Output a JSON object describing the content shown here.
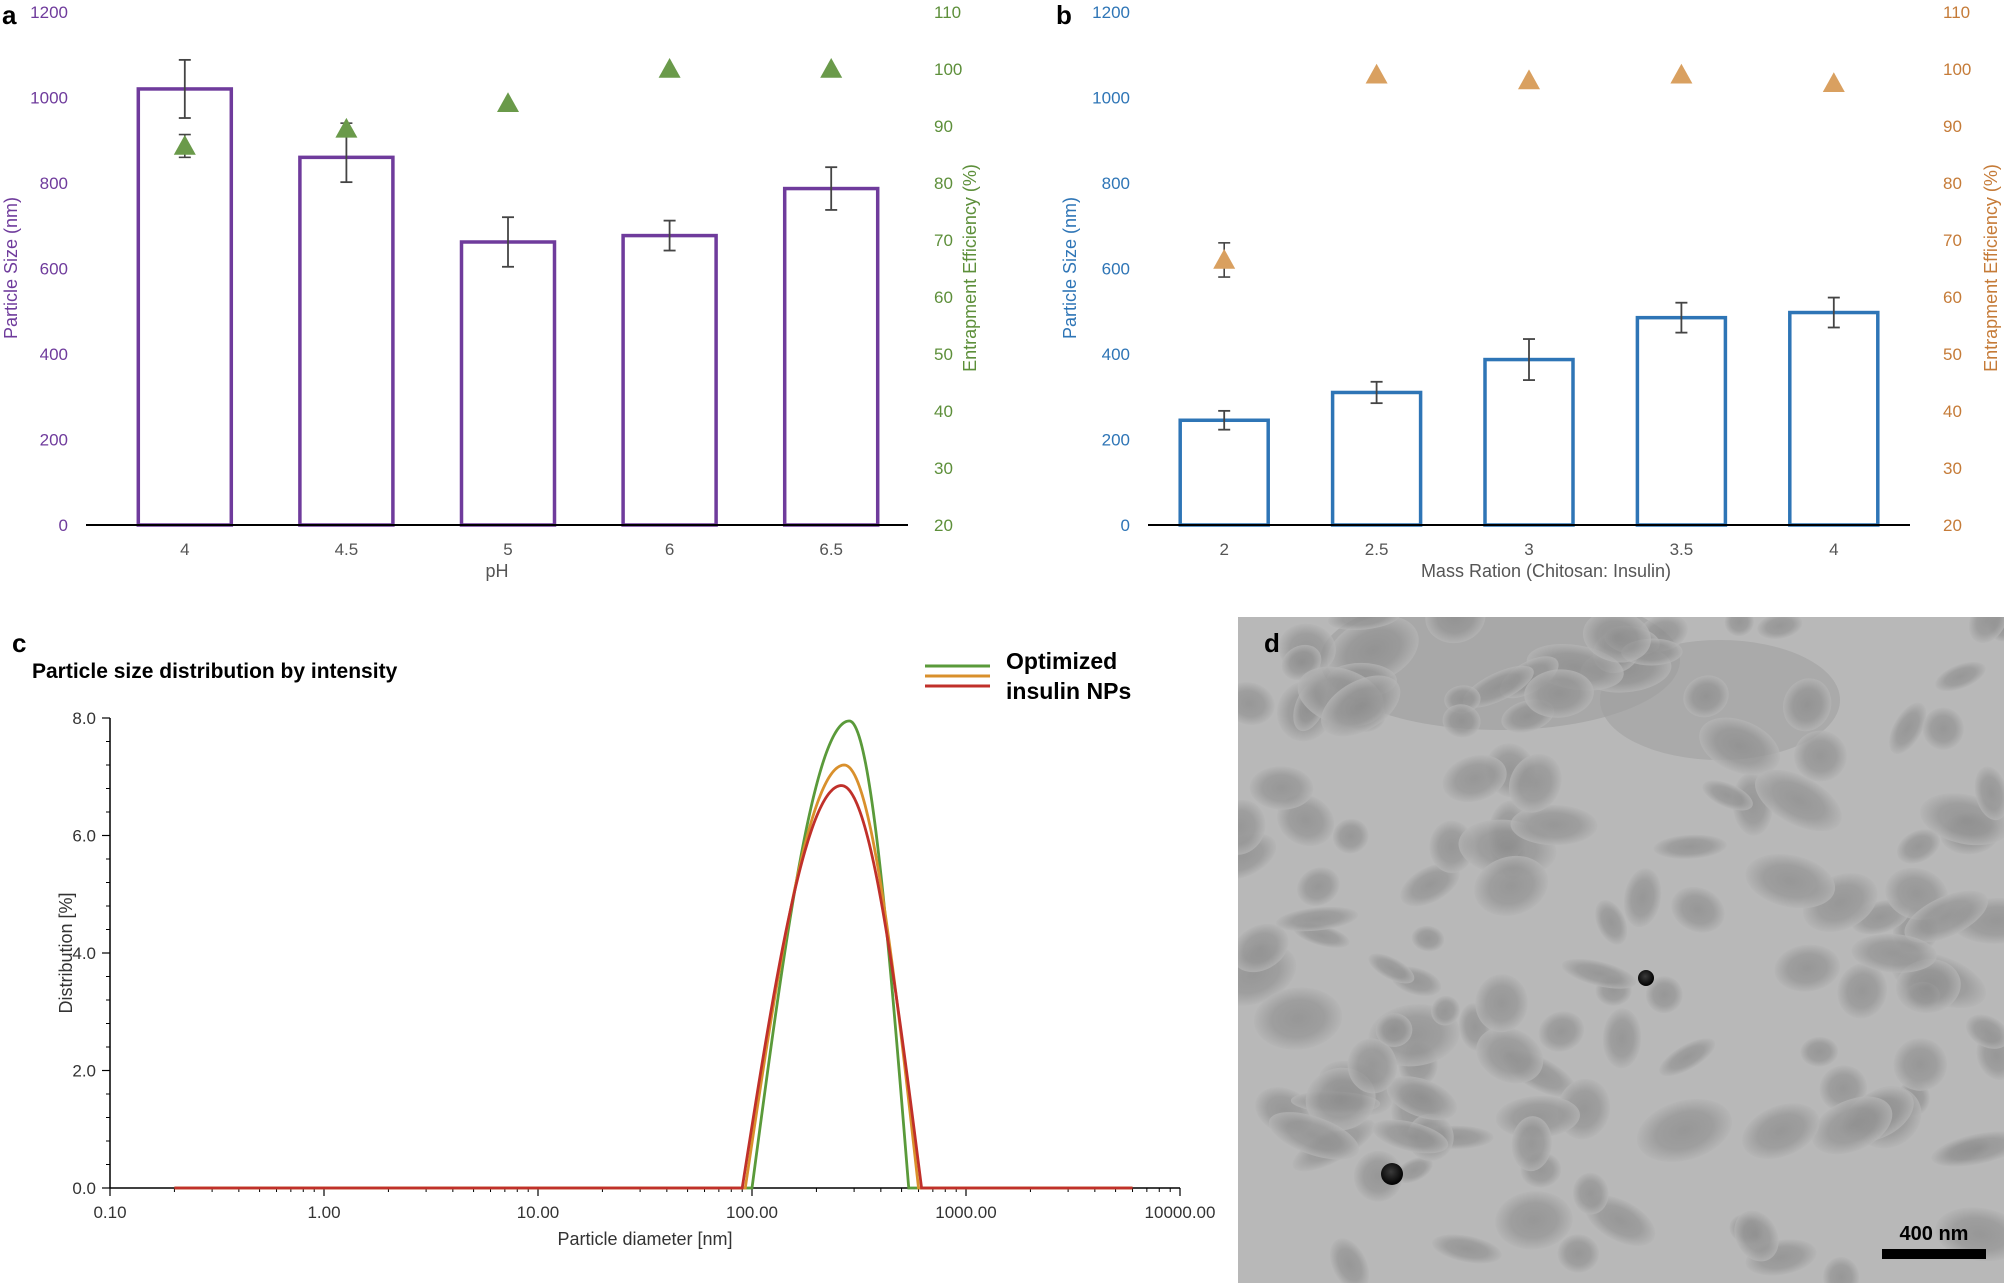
{
  "panels": {
    "a": {
      "letter": "a",
      "chart_data": {
        "type": "bar",
        "categories": [
          "4",
          "4.5",
          "5",
          "6",
          "6.5"
        ],
        "xlabel": "pH",
        "ylabel_left": "Particle Size (nm)",
        "ylabel_right": "Entrapment Efficiency (%)",
        "ylim_left": [
          0,
          1200
        ],
        "ylim_right": [
          20,
          110
        ],
        "yticks_left": [
          "0",
          "200",
          "400",
          "600",
          "800",
          "1000",
          "1200"
        ],
        "yticks_right": [
          "20",
          "30",
          "40",
          "50",
          "60",
          "70",
          "80",
          "90",
          "100",
          "110"
        ],
        "bars": {
          "values": [
            1020,
            860,
            662,
            677,
            787
          ],
          "errors": [
            68,
            58,
            58,
            35,
            50
          ]
        },
        "markers": {
          "values": [
            86.5,
            89.5,
            94,
            100,
            100
          ],
          "errors": [
            2,
            1,
            0.5,
            0.3,
            0.3
          ]
        },
        "colors": {
          "bars": "#6f3b9c",
          "markers": "#6a9a4a",
          "left_axis": "#6f3b9c",
          "right_axis": "#5d8f3a"
        },
        "grid": false
      }
    },
    "b": {
      "letter": "b",
      "chart_data": {
        "type": "bar",
        "categories": [
          "2",
          "2.5",
          "3",
          "3.5",
          "4"
        ],
        "xlabel": "Mass Ration (Chitosan: Insulin)",
        "ylabel_left": "Particle Size (nm)",
        "ylabel_right": "Entrapment Efficiency (%)",
        "ylim_left": [
          0,
          1200
        ],
        "ylim_right": [
          20,
          110
        ],
        "yticks_left": [
          "0",
          "200",
          "400",
          "600",
          "800",
          "1000",
          "1200"
        ],
        "yticks_right": [
          "20",
          "30",
          "40",
          "50",
          "60",
          "70",
          "80",
          "90",
          "100",
          "110"
        ],
        "bars": {
          "values": [
            245,
            310,
            387,
            485,
            497
          ],
          "errors": [
            22,
            25,
            48,
            35,
            35
          ]
        },
        "markers": {
          "values": [
            66.5,
            99,
            98,
            99,
            97.5
          ],
          "errors": [
            3,
            0.5,
            0.5,
            0.5,
            0.5
          ]
        },
        "colors": {
          "bars": "#2e75b6",
          "markers": "#d9a060",
          "left_axis": "#2e75b6",
          "right_axis": "#c57b38"
        },
        "grid": false
      }
    },
    "c": {
      "letter": "c",
      "title": "Particle size distribution by intensity",
      "legend": {
        "line1": "Optimized",
        "line2": "insulin NPs"
      },
      "chart_data": {
        "type": "line",
        "xscale": "log",
        "xlabel": "Particle diameter [nm]",
        "ylabel": "Distribution [%]",
        "xlim": [
          0.1,
          10000
        ],
        "ylim": [
          0,
          8
        ],
        "xticks": [
          "0.10",
          "1.00",
          "10.00",
          "100.00",
          "1000.00",
          "10000.00"
        ],
        "yticks": [
          "0.0",
          "2.0",
          "4.0",
          "6.0",
          "8.0"
        ],
        "series": [
          {
            "color": "#5a9a3a",
            "peak_x": 285,
            "peak_y": 7.95,
            "lo": 100,
            "hi": 540
          },
          {
            "color": "#d9902c",
            "peak_x": 270,
            "peak_y": 7.2,
            "lo": 93,
            "hi": 600
          },
          {
            "color": "#c0302a",
            "peak_x": 262,
            "peak_y": 6.85,
            "lo": 90,
            "hi": 620
          }
        ]
      }
    },
    "d": {
      "letter": "d",
      "scalebar": "400 nm"
    }
  }
}
